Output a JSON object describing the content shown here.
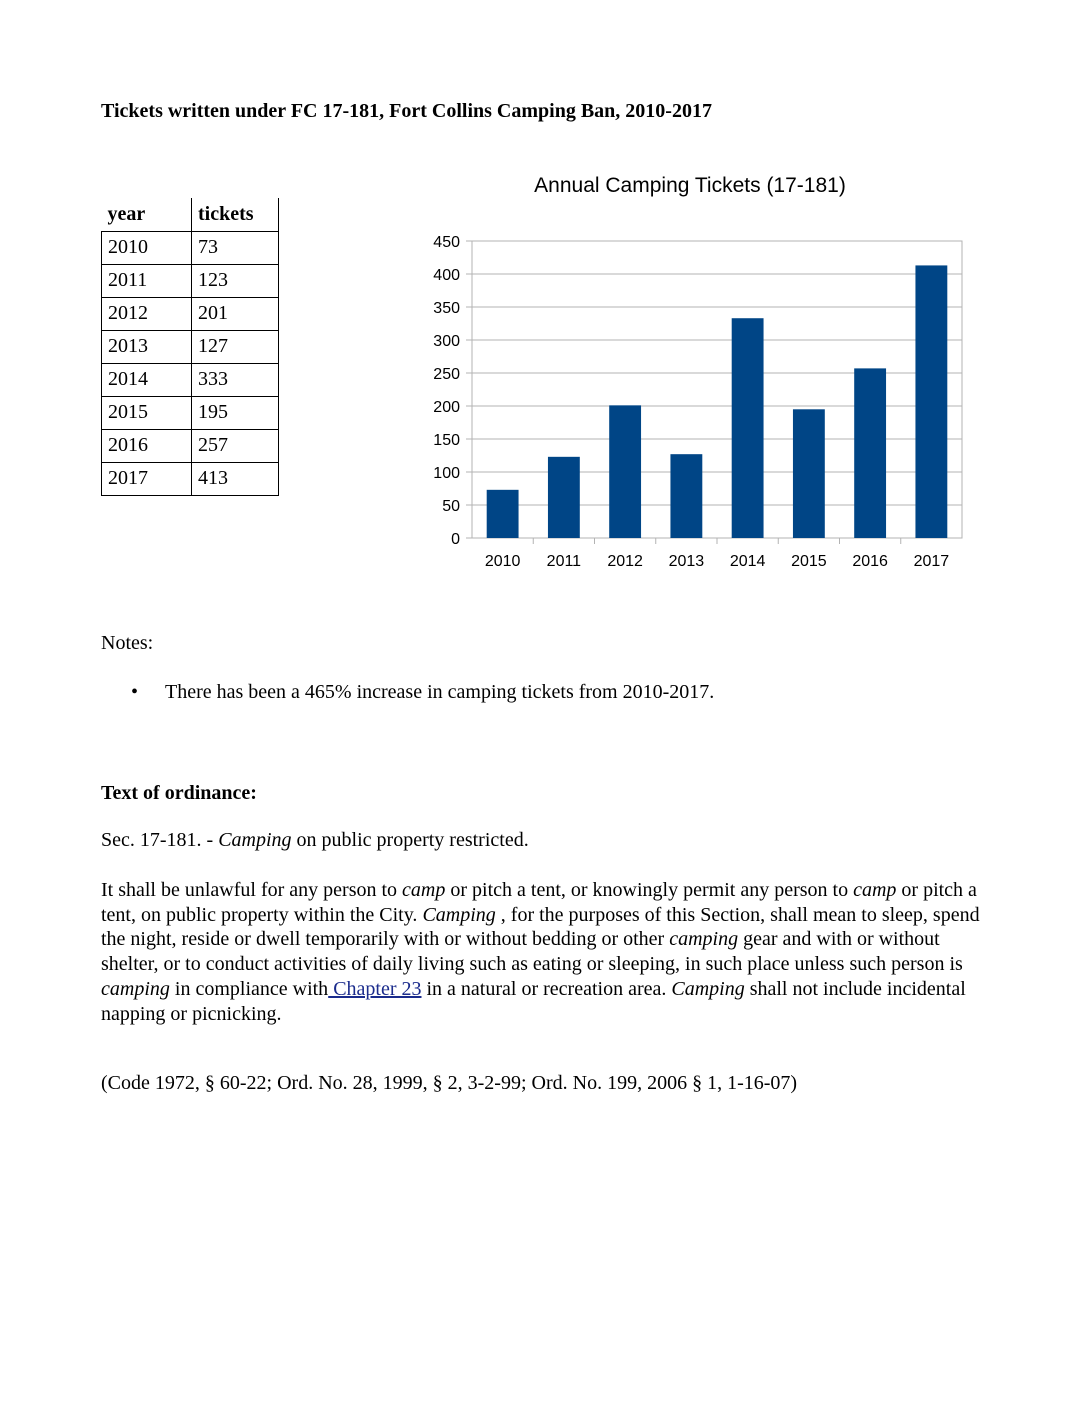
{
  "heading": "Tickets written under FC 17-181, Fort Collins Camping Ban, 2010-2017",
  "table": {
    "headers": [
      "year",
      "tickets"
    ],
    "rows": [
      [
        "2010",
        "73"
      ],
      [
        "2011",
        "123"
      ],
      [
        "2012",
        "201"
      ],
      [
        "2013",
        "127"
      ],
      [
        "2014",
        "333"
      ],
      [
        "2015",
        "195"
      ],
      [
        "2016",
        "257"
      ],
      [
        "2017",
        "413"
      ]
    ]
  },
  "chart_data": {
    "type": "bar",
    "title": "Annual Camping Tickets (17-181)",
    "categories": [
      "2010",
      "2011",
      "2012",
      "2013",
      "2014",
      "2015",
      "2016",
      "2017"
    ],
    "values": [
      73,
      123,
      201,
      127,
      333,
      195,
      257,
      413
    ],
    "xlabel": "",
    "ylabel": "",
    "ylim": [
      0,
      450
    ],
    "yticks": [
      0,
      50,
      100,
      150,
      200,
      250,
      300,
      350,
      400,
      450
    ],
    "grid": true,
    "legend": "none",
    "bar_color": "#004586"
  },
  "notes": {
    "label": "Notes:",
    "items": [
      "There has been a 465% increase in camping tickets from 2010-2017."
    ]
  },
  "ordinance": {
    "heading": "Text of ordinance:",
    "section": {
      "prefix": "Sec. 17-181. - ",
      "italic": "Camping",
      "suffix": " on public property restricted."
    },
    "body": {
      "t1": "It shall be unlawful for any person to ",
      "i1": "camp",
      "t2": " or pitch a tent, or knowingly permit any person to ",
      "i2": "camp",
      "t3": " or pitch a tent, on public property within the City. ",
      "i3": "Camping",
      "t4": " , for the purposes of this Section, shall mean to sleep, spend the night, reside or dwell temporarily with or without bedding or other ",
      "i4": "camping",
      "t5": " gear and with or without shelter, or to conduct activities of daily living such as eating or sleeping, in such place unless such person is ",
      "i5": "camping",
      "t6": " in compliance with",
      "link": " Chapter 23",
      "t7": " in a natural or recreation area. ",
      "i6": "Camping",
      "t8": " shall not include incidental napping or picnicking."
    },
    "citation": "(Code 1972, § 60-22; Ord. No. 28, 1999, § 2, 3-2-99; Ord. No. 199, 2006 § 1, 1-16-07)"
  }
}
